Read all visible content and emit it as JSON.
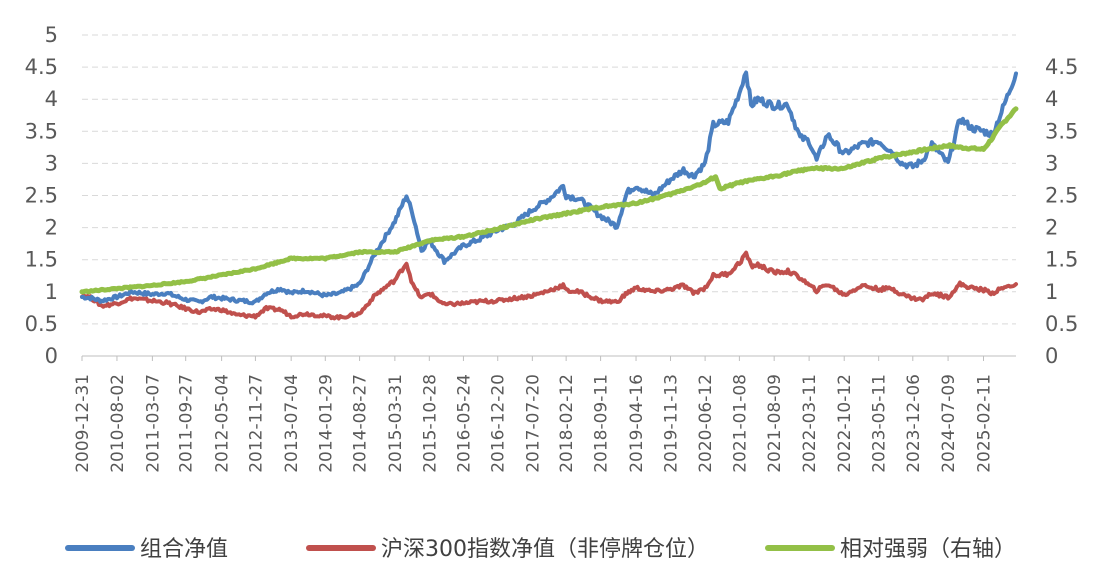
{
  "chart_data": {
    "type": "line",
    "title": "",
    "xlabel": "",
    "ylabel": "",
    "grid": true,
    "legend_position": "bottom",
    "y_left": {
      "min": 0,
      "max": 5,
      "step": 0.5,
      "ticks": [
        "0",
        "0.5",
        "1",
        "1.5",
        "2",
        "2.5",
        "3",
        "3.5",
        "4",
        "4.5",
        "5"
      ]
    },
    "y_right": {
      "min": 0,
      "max": 4.5,
      "step": 0.5,
      "ticks": [
        "0",
        "0.5",
        "1",
        "1.5",
        "2",
        "2.5",
        "3",
        "3.5",
        "4",
        "4.5"
      ]
    },
    "x_tick_labels": [
      "2009-12-31",
      "2010-08-02",
      "2011-03-07",
      "2011-09-27",
      "2012-05-04",
      "2012-11-27",
      "2013-07-04",
      "2014-01-29",
      "2014-08-27",
      "2015-03-31",
      "2015-10-28",
      "2016-05-24",
      "2016-12-20",
      "2017-07-20",
      "2018-02-12",
      "2018-09-11",
      "2019-04-16",
      "2019-11-13",
      "2020-06-12",
      "2021-01-08",
      "2021-08-09",
      "2022-03-11",
      "2022-10-12",
      "2023-05-11",
      "2023-12-06",
      "2024-07-09",
      "2025-02-11"
    ],
    "x_range": [
      "2009-12-31",
      "2025-08-29"
    ],
    "series": [
      {
        "name": "组合净值",
        "axis": "left",
        "color": "#4a7fc0",
        "points": [
          [
            "2009-12-31",
            0.92
          ],
          [
            "2010-03-01",
            0.9
          ],
          [
            "2010-05-01",
            0.86
          ],
          [
            "2010-08-02",
            0.92
          ],
          [
            "2010-11-01",
            1.0
          ],
          [
            "2011-03-07",
            0.96
          ],
          [
            "2011-06-01",
            0.98
          ],
          [
            "2011-09-27",
            0.88
          ],
          [
            "2011-12-20",
            0.84
          ],
          [
            "2012-03-01",
            0.92
          ],
          [
            "2012-05-04",
            0.9
          ],
          [
            "2012-08-01",
            0.87
          ],
          [
            "2012-11-27",
            0.84
          ],
          [
            "2013-02-01",
            0.98
          ],
          [
            "2013-05-01",
            1.05
          ],
          [
            "2013-07-04",
            0.98
          ],
          [
            "2013-10-01",
            1.02
          ],
          [
            "2014-01-29",
            0.94
          ],
          [
            "2014-05-01",
            0.98
          ],
          [
            "2014-08-27",
            1.12
          ],
          [
            "2014-12-01",
            1.6
          ],
          [
            "2015-03-31",
            2.1
          ],
          [
            "2015-06-10",
            2.5
          ],
          [
            "2015-07-20",
            2.2
          ],
          [
            "2015-09-10",
            1.65
          ],
          [
            "2015-10-28",
            1.8
          ],
          [
            "2016-01-28",
            1.48
          ],
          [
            "2016-05-24",
            1.72
          ],
          [
            "2016-09-01",
            1.82
          ],
          [
            "2016-12-20",
            1.96
          ],
          [
            "2017-04-01",
            2.06
          ],
          [
            "2017-07-20",
            2.28
          ],
          [
            "2017-11-01",
            2.45
          ],
          [
            "2018-01-25",
            2.65
          ],
          [
            "2018-02-12",
            2.5
          ],
          [
            "2018-05-01",
            2.45
          ],
          [
            "2018-09-11",
            2.18
          ],
          [
            "2018-12-20",
            2.02
          ],
          [
            "2019-02-20",
            2.55
          ],
          [
            "2019-04-16",
            2.65
          ],
          [
            "2019-08-01",
            2.5
          ],
          [
            "2019-11-13",
            2.75
          ],
          [
            "2020-02-01",
            2.9
          ],
          [
            "2020-04-01",
            2.8
          ],
          [
            "2020-06-12",
            3.0
          ],
          [
            "2020-08-01",
            3.6
          ],
          [
            "2020-11-01",
            3.65
          ],
          [
            "2021-01-08",
            4.1
          ],
          [
            "2021-02-18",
            4.45
          ],
          [
            "2021-03-20",
            3.9
          ],
          [
            "2021-05-01",
            4.0
          ],
          [
            "2021-08-09",
            3.9
          ],
          [
            "2021-11-01",
            3.92
          ],
          [
            "2022-01-15",
            3.4
          ],
          [
            "2022-03-11",
            3.35
          ],
          [
            "2022-04-26",
            3.05
          ],
          [
            "2022-07-01",
            3.45
          ],
          [
            "2022-10-12",
            3.15
          ],
          [
            "2023-01-30",
            3.3
          ],
          [
            "2023-05-11",
            3.35
          ],
          [
            "2023-08-01",
            3.18
          ],
          [
            "2023-10-01",
            3.0
          ],
          [
            "2023-12-06",
            2.95
          ],
          [
            "2024-02-05",
            3.05
          ],
          [
            "2024-04-01",
            3.3
          ],
          [
            "2024-07-09",
            3.0
          ],
          [
            "2024-09-20",
            3.7
          ],
          [
            "2024-12-01",
            3.55
          ],
          [
            "2025-02-11",
            3.5
          ],
          [
            "2025-04-07",
            3.45
          ],
          [
            "2025-06-01",
            3.8
          ],
          [
            "2025-08-29",
            4.4
          ]
        ]
      },
      {
        "name": "沪深300指数净值（非停牌仓位）",
        "axis": "left",
        "color": "#c0504d",
        "points": [
          [
            "2009-12-31",
            0.95
          ],
          [
            "2010-03-01",
            0.9
          ],
          [
            "2010-05-01",
            0.78
          ],
          [
            "2010-08-02",
            0.82
          ],
          [
            "2010-11-01",
            0.9
          ],
          [
            "2011-03-07",
            0.86
          ],
          [
            "2011-06-01",
            0.83
          ],
          [
            "2011-09-27",
            0.74
          ],
          [
            "2011-12-20",
            0.68
          ],
          [
            "2012-03-01",
            0.73
          ],
          [
            "2012-05-04",
            0.72
          ],
          [
            "2012-08-01",
            0.64
          ],
          [
            "2012-11-27",
            0.62
          ],
          [
            "2013-02-01",
            0.74
          ],
          [
            "2013-05-01",
            0.72
          ],
          [
            "2013-07-04",
            0.62
          ],
          [
            "2013-10-01",
            0.66
          ],
          [
            "2014-01-29",
            0.62
          ],
          [
            "2014-05-01",
            0.6
          ],
          [
            "2014-08-27",
            0.66
          ],
          [
            "2014-12-01",
            0.95
          ],
          [
            "2015-03-31",
            1.18
          ],
          [
            "2015-06-10",
            1.45
          ],
          [
            "2015-07-20",
            1.1
          ],
          [
            "2015-09-10",
            0.9
          ],
          [
            "2015-10-28",
            0.98
          ],
          [
            "2016-01-28",
            0.8
          ],
          [
            "2016-05-24",
            0.82
          ],
          [
            "2016-09-01",
            0.85
          ],
          [
            "2016-12-20",
            0.86
          ],
          [
            "2017-04-01",
            0.9
          ],
          [
            "2017-07-20",
            0.94
          ],
          [
            "2017-11-01",
            1.02
          ],
          [
            "2018-01-25",
            1.1
          ],
          [
            "2018-02-12",
            1.02
          ],
          [
            "2018-05-01",
            1.0
          ],
          [
            "2018-09-11",
            0.86
          ],
          [
            "2018-12-20",
            0.84
          ],
          [
            "2019-02-20",
            0.98
          ],
          [
            "2019-04-16",
            1.06
          ],
          [
            "2019-08-01",
            1.0
          ],
          [
            "2019-11-13",
            1.04
          ],
          [
            "2020-02-01",
            1.1
          ],
          [
            "2020-04-01",
            0.98
          ],
          [
            "2020-06-12",
            1.06
          ],
          [
            "2020-08-01",
            1.25
          ],
          [
            "2020-11-01",
            1.28
          ],
          [
            "2021-01-08",
            1.45
          ],
          [
            "2021-02-18",
            1.6
          ],
          [
            "2021-03-20",
            1.4
          ],
          [
            "2021-05-01",
            1.42
          ],
          [
            "2021-08-09",
            1.3
          ],
          [
            "2021-11-01",
            1.32
          ],
          [
            "2022-01-15",
            1.22
          ],
          [
            "2022-03-11",
            1.1
          ],
          [
            "2022-04-26",
            1.02
          ],
          [
            "2022-07-01",
            1.12
          ],
          [
            "2022-10-12",
            0.95
          ],
          [
            "2023-01-30",
            1.1
          ],
          [
            "2023-05-11",
            1.04
          ],
          [
            "2023-08-01",
            1.05
          ],
          [
            "2023-10-01",
            0.96
          ],
          [
            "2023-12-06",
            0.9
          ],
          [
            "2024-02-05",
            0.88
          ],
          [
            "2024-04-01",
            0.98
          ],
          [
            "2024-07-09",
            0.92
          ],
          [
            "2024-09-20",
            1.12
          ],
          [
            "2024-12-01",
            1.06
          ],
          [
            "2025-02-11",
            1.03
          ],
          [
            "2025-04-07",
            0.98
          ],
          [
            "2025-06-01",
            1.05
          ],
          [
            "2025-08-29",
            1.12
          ]
        ]
      },
      {
        "name": "相对强弱（右轴）",
        "axis": "right",
        "color": "#93c047",
        "points": [
          [
            "2009-12-31",
            1.0
          ],
          [
            "2010-08-02",
            1.05
          ],
          [
            "2011-03-07",
            1.1
          ],
          [
            "2011-09-27",
            1.16
          ],
          [
            "2012-05-04",
            1.26
          ],
          [
            "2012-11-27",
            1.36
          ],
          [
            "2013-07-04",
            1.52
          ],
          [
            "2014-01-29",
            1.52
          ],
          [
            "2014-08-27",
            1.62
          ],
          [
            "2015-03-31",
            1.62
          ],
          [
            "2015-10-28",
            1.8
          ],
          [
            "2016-05-24",
            1.86
          ],
          [
            "2016-12-20",
            1.98
          ],
          [
            "2017-07-20",
            2.12
          ],
          [
            "2018-02-12",
            2.22
          ],
          [
            "2018-09-11",
            2.32
          ],
          [
            "2019-04-16",
            2.38
          ],
          [
            "2019-11-13",
            2.52
          ],
          [
            "2020-06-12",
            2.7
          ],
          [
            "2020-08-15",
            2.8
          ],
          [
            "2020-09-10",
            2.6
          ],
          [
            "2021-01-08",
            2.7
          ],
          [
            "2021-08-09",
            2.8
          ],
          [
            "2022-03-11",
            2.92
          ],
          [
            "2022-10-12",
            2.92
          ],
          [
            "2023-05-11",
            3.08
          ],
          [
            "2023-12-06",
            3.18
          ],
          [
            "2024-07-09",
            3.28
          ],
          [
            "2024-09-20",
            3.25
          ],
          [
            "2025-02-11",
            3.22
          ],
          [
            "2025-04-07",
            3.4
          ],
          [
            "2025-06-01",
            3.6
          ],
          [
            "2025-08-29",
            3.85
          ]
        ]
      }
    ]
  }
}
